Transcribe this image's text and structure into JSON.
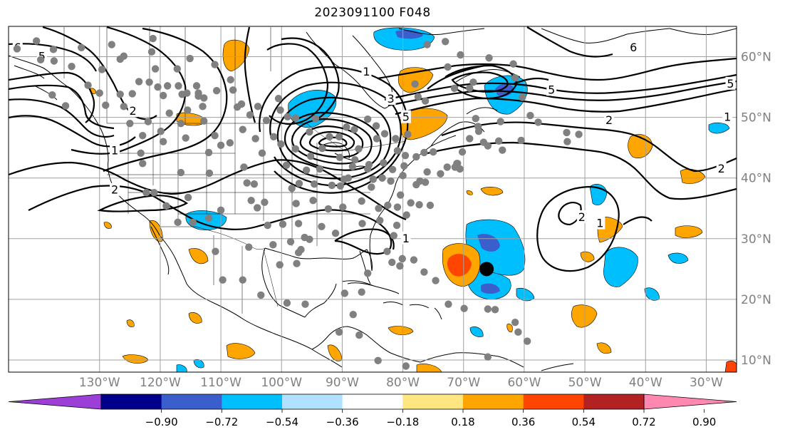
{
  "title": "2023091100 F048",
  "map": {
    "projection": "cylindrical",
    "lon_range": [
      -145,
      -25
    ],
    "lat_range": [
      8,
      65
    ],
    "gridline_color": "#a0a0a0",
    "label_color": "#808080",
    "lon_ticks": [
      {
        "value": -130,
        "label": "130°W"
      },
      {
        "value": -120,
        "label": "120°W"
      },
      {
        "value": -110,
        "label": "110°W"
      },
      {
        "value": -100,
        "label": "100°W"
      },
      {
        "value": -90,
        "label": "90°W"
      },
      {
        "value": -80,
        "label": "80°W"
      },
      {
        "value": -70,
        "label": "70°W"
      },
      {
        "value": -60,
        "label": "60°W"
      },
      {
        "value": -50,
        "label": "50°W"
      },
      {
        "value": -40,
        "label": "40°W"
      },
      {
        "value": -30,
        "label": "30°W"
      }
    ],
    "lat_ticks": [
      {
        "value": 60,
        "label": "60°N"
      },
      {
        "value": 50,
        "label": "50°N"
      },
      {
        "value": 40,
        "label": "40°N"
      },
      {
        "value": 30,
        "label": "30°N"
      },
      {
        "value": 20,
        "label": "20°N"
      },
      {
        "value": 10,
        "label": "10°N"
      }
    ]
  },
  "colorbar": {
    "colors": [
      "#9b3fd6",
      "#00008b",
      "#3a5fcd",
      "#00bfff",
      "#b0e2ff",
      "#ffffff",
      "#ffe680",
      "#ffa500",
      "#ff4500",
      "#b22222",
      "#ff88b0"
    ],
    "tick_labels": [
      "−0.90",
      "−0.72",
      "−0.54",
      "−0.36",
      "−0.18",
      "0.18",
      "0.36",
      "0.54",
      "0.72",
      "0.90"
    ]
  },
  "contour_labels": [
    {
      "text": "6",
      "lon": -143.5,
      "lat": 61.5
    },
    {
      "text": "6",
      "lon": -42,
      "lat": 61.5
    },
    {
      "text": "5",
      "lon": -55.5,
      "lat": 54.5
    },
    {
      "text": "5",
      "lon": -26,
      "lat": 55.5
    },
    {
      "text": "5",
      "lon": -79.5,
      "lat": 50
    },
    {
      "text": "3",
      "lon": -82,
      "lat": 53
    },
    {
      "text": "1",
      "lon": -86,
      "lat": 57.5
    },
    {
      "text": "2",
      "lon": -46,
      "lat": 49.5
    },
    {
      "text": "1",
      "lon": -26.5,
      "lat": 50
    },
    {
      "text": "2",
      "lon": -27.5,
      "lat": 41.5
    },
    {
      "text": "2",
      "lon": -50.5,
      "lat": 33.5
    },
    {
      "text": "1",
      "lon": -47.5,
      "lat": 32.5
    },
    {
      "text": "1",
      "lon": -79.5,
      "lat": 30
    },
    {
      "text": "2",
      "lon": -124.5,
      "lat": 51
    },
    {
      "text": "1",
      "lon": -127.5,
      "lat": 44.5
    },
    {
      "text": "2",
      "lon": -127.5,
      "lat": 38
    },
    {
      "text": "5",
      "lon": -139.5,
      "lat": 60
    }
  ],
  "markers": {
    "storm_center": {
      "lon": -66.2,
      "lat": 25.0,
      "color": "#000000"
    },
    "station_color": "#808080",
    "stations": [
      [
        -140.4,
        62.6
      ],
      [
        -137.6,
        61.2
      ],
      [
        -137.5,
        59.3
      ],
      [
        -137.8,
        53.7
      ],
      [
        -135.6,
        51.9
      ],
      [
        -133,
        61.5
      ],
      [
        -130,
        54
      ],
      [
        -129,
        52
      ],
      [
        -128,
        62
      ],
      [
        -126.6,
        59.6
      ],
      [
        -126.6,
        53.8
      ],
      [
        -126,
        51.8
      ],
      [
        -125,
        49
      ],
      [
        -121.2,
        63
      ],
      [
        -120.8,
        58
      ],
      [
        -120.4,
        55
      ],
      [
        -119.5,
        53.6
      ],
      [
        -119.9,
        47.7
      ],
      [
        -119.5,
        46
      ],
      [
        -117.2,
        58
      ],
      [
        -116.4,
        53.8
      ],
      [
        -116.6,
        49
      ],
      [
        -115.8,
        46.6
      ],
      [
        -115.6,
        54
      ],
      [
        -116.6,
        40.9
      ],
      [
        -115.4,
        36.8
      ],
      [
        -113.7,
        54
      ],
      [
        -113,
        51.8
      ],
      [
        -112.8,
        49.4
      ],
      [
        -112,
        44.2
      ],
      [
        -111,
        47
      ],
      [
        -110,
        45.4
      ],
      [
        -110,
        34.7
      ],
      [
        -107.3,
        51.7
      ],
      [
        -106.4,
        48
      ],
      [
        -106.2,
        41.8
      ],
      [
        -105.7,
        39.2
      ],
      [
        -105,
        36.3
      ],
      [
        -104.5,
        39
      ],
      [
        -104,
        35.1
      ],
      [
        -102.8,
        36
      ],
      [
        -102.3,
        32.2
      ],
      [
        -101.4,
        29
      ],
      [
        -100.5,
        53.1
      ],
      [
        -100.2,
        51.2
      ],
      [
        -100.1,
        45.6
      ],
      [
        -99.2,
        42.1
      ],
      [
        -98.3,
        38.3
      ],
      [
        -97.6,
        35.8
      ],
      [
        -97.2,
        32.5
      ],
      [
        -97.2,
        27.7
      ],
      [
        -96.2,
        30.2
      ],
      [
        -95.2,
        43.6
      ],
      [
        -94.6,
        39
      ],
      [
        -94.8,
        36.3
      ],
      [
        -93.4,
        32
      ],
      [
        -92.3,
        34.9
      ],
      [
        -91.7,
        38.8
      ],
      [
        -91.1,
        30.9
      ],
      [
        -90.5,
        46.8
      ],
      [
        -90.4,
        43.4
      ],
      [
        -89.9,
        35.2
      ],
      [
        -89,
        40
      ],
      [
        -88,
        48
      ],
      [
        -87.3,
        44.8
      ],
      [
        -86.7,
        32.5
      ],
      [
        -85.8,
        41.5
      ],
      [
        -85.2,
        38.5
      ],
      [
        -84,
        35
      ],
      [
        -83.8,
        33
      ],
      [
        -83.2,
        42.5
      ],
      [
        -82,
        39.5
      ],
      [
        -82.5,
        35.5
      ],
      [
        -81.5,
        30.5
      ],
      [
        -81,
        32.2
      ],
      [
        -80.4,
        37.2
      ],
      [
        -80,
        40.4
      ],
      [
        -79.8,
        42
      ],
      [
        -79.4,
        33.9
      ],
      [
        -78.7,
        35.9
      ],
      [
        -77.8,
        38.9
      ],
      [
        -77.8,
        43.5
      ],
      [
        -77.2,
        39.5
      ],
      [
        -76,
        41
      ],
      [
        -76.3,
        52.7
      ],
      [
        -76,
        62
      ],
      [
        -75,
        44.3
      ],
      [
        -73.8,
        40.7
      ],
      [
        -72.7,
        41.8
      ],
      [
        -71.1,
        42.4
      ],
      [
        -70.2,
        44.3
      ],
      [
        -69,
        46.5
      ],
      [
        -68,
        49.8
      ],
      [
        -66,
        45.3
      ],
      [
        -67.6,
        48.5
      ],
      [
        -64.2,
        46.1
      ],
      [
        -63.6,
        44.6
      ],
      [
        -63.9,
        49.3
      ],
      [
        -60.5,
        46.2
      ],
      [
        -60.3,
        53.3
      ],
      [
        -61.5,
        56.5
      ],
      [
        -61.8,
        58.8
      ],
      [
        -59,
        50.3
      ],
      [
        -57.7,
        49.2
      ],
      [
        -53,
        47.5
      ],
      [
        -51,
        47.2
      ],
      [
        -52.9,
        46
      ],
      [
        -79.2,
        47.2
      ],
      [
        -78,
        55.5
      ],
      [
        -72.6,
        58.3
      ],
      [
        -77.5,
        53.4
      ],
      [
        -71.5,
        54.8
      ],
      [
        -69,
        54.8
      ],
      [
        -68.4,
        55.8
      ],
      [
        -65.8,
        59.8
      ],
      [
        -70.5,
        60.3
      ],
      [
        -73,
        62.5
      ],
      [
        -86.8,
        36.2
      ],
      [
        -85.6,
        42.2
      ],
      [
        -84.3,
        46.5
      ],
      [
        -88.3,
        41.9
      ],
      [
        -92.1,
        46.8
      ],
      [
        -93.3,
        44.9
      ],
      [
        -95.4,
        47.6
      ],
      [
        -97.7,
        49.9
      ],
      [
        -97.7,
        44.8
      ],
      [
        -101.3,
        46.8
      ],
      [
        -103.2,
        44.1
      ],
      [
        -104.3,
        46.5
      ],
      [
        -105.2,
        50.4
      ],
      [
        -108.5,
        45.8
      ],
      [
        -111.9,
        40.8
      ],
      [
        -112,
        33.4
      ],
      [
        -114.6,
        32.7
      ],
      [
        -117.1,
        32.7
      ],
      [
        -119,
        35.4
      ],
      [
        -121,
        37.6
      ],
      [
        -122.3,
        37.6
      ],
      [
        -122.9,
        42.4
      ],
      [
        -123.2,
        44.1
      ],
      [
        -122.9,
        47
      ],
      [
        -95.9,
        41.3
      ],
      [
        -97.1,
        39.1
      ],
      [
        -99.8,
        32.4
      ],
      [
        -96.8,
        28.2
      ],
      [
        -98.5,
        29.5
      ],
      [
        -95.4,
        29.9
      ],
      [
        -93.7,
        41.5
      ],
      [
        -90.3,
        38.7
      ],
      [
        -87.9,
        43
      ],
      [
        -89.7,
        39.8
      ],
      [
        -81.7,
        41.4
      ],
      [
        -83.4,
        40
      ],
      [
        -84.9,
        39.8
      ],
      [
        -80.1,
        26.7
      ],
      [
        -82.6,
        27.9
      ],
      [
        -81.8,
        26.1
      ],
      [
        -80.9,
        35.2
      ],
      [
        -77.3,
        35.6
      ],
      [
        -75.5,
        35.5
      ],
      [
        -76.5,
        44.2
      ],
      [
        -79.6,
        43.7
      ],
      [
        -80.9,
        44.5
      ],
      [
        -81.2,
        46.5
      ],
      [
        -83,
        47.3
      ],
      [
        -84.4,
        48.6
      ],
      [
        -85.8,
        49.7
      ],
      [
        -89.3,
        48.4
      ],
      [
        -94.4,
        49.8
      ],
      [
        -99,
        50.1
      ],
      [
        -102.5,
        49.5
      ],
      [
        -103.9,
        51.8
      ],
      [
        -106.6,
        52.2
      ],
      [
        -108,
        54.5
      ],
      [
        -110.7,
        54.4
      ],
      [
        -114,
        55.2
      ],
      [
        -117,
        55.2
      ],
      [
        -118.8,
        55.2
      ],
      [
        -121.8,
        55.8
      ],
      [
        -123.5,
        55.9
      ],
      [
        -124.6,
        53.9
      ],
      [
        -122,
        49.3
      ],
      [
        -118.5,
        50.7
      ],
      [
        -115.5,
        51.2
      ],
      [
        -113.7,
        53.5
      ],
      [
        -112.8,
        53.2
      ],
      [
        -108.4,
        56.2
      ],
      [
        -111,
        58.7
      ],
      [
        -115.1,
        59.7
      ],
      [
        -121.4,
        60.8
      ],
      [
        -126,
        60.1
      ],
      [
        -129.6,
        57.9
      ],
      [
        -131.9,
        55.3
      ],
      [
        -134.6,
        58.4
      ],
      [
        -139.7,
        59.5
      ],
      [
        -143.6,
        61.3
      ],
      [
        -80.5,
        25.5
      ],
      [
        -78.2,
        26.5
      ],
      [
        -76.5,
        24.5
      ],
      [
        -74.6,
        23.1
      ],
      [
        -72.5,
        19.2
      ],
      [
        -69.9,
        18.5
      ],
      [
        -66,
        18.4
      ],
      [
        -64.8,
        18.3
      ],
      [
        -61.5,
        16.2
      ],
      [
        -61,
        14.6
      ],
      [
        -59.5,
        13.1
      ],
      [
        -85.8,
        24.3
      ],
      [
        -99.1,
        19.4
      ],
      [
        -96.1,
        19.2
      ],
      [
        -103.4,
        20.7
      ],
      [
        -106.4,
        23.2
      ],
      [
        -110.9,
        27.9
      ],
      [
        -109.7,
        23.2
      ],
      [
        -105.4,
        28.6
      ],
      [
        -100.3,
        25.7
      ],
      [
        -97.5,
        25.9
      ],
      [
        -89.6,
        21
      ],
      [
        -86.8,
        21.2
      ],
      [
        -88.2,
        17.5
      ],
      [
        -90.5,
        14.6
      ],
      [
        -87.2,
        14.1
      ],
      [
        -84.1,
        9.9
      ],
      [
        -79.5,
        9
      ],
      [
        -66,
        10.5
      ],
      [
        -76.3,
        39.3
      ],
      [
        -71.4,
        41.8
      ],
      [
        -70.6,
        41.5
      ],
      [
        -71,
        42.4
      ],
      [
        -67.5,
        47.7
      ],
      [
        -66.7,
        45.9
      ]
    ]
  }
}
